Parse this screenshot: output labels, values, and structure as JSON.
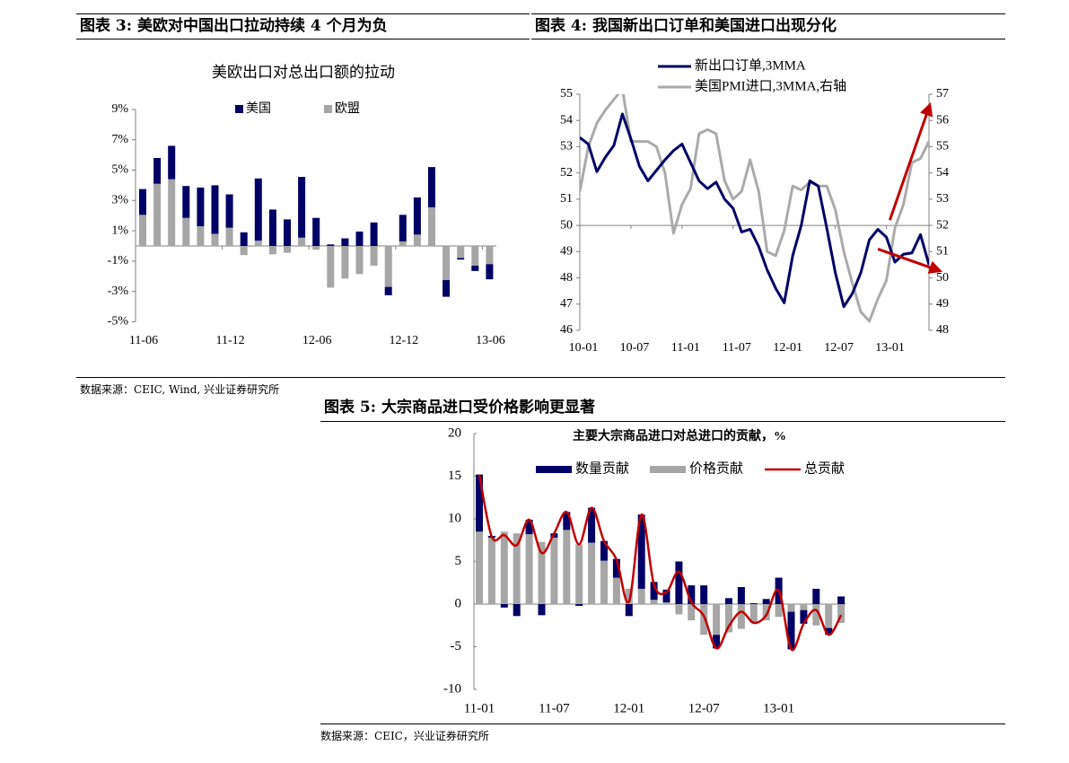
{
  "figures": {
    "fig3_title": "图表 3:  美欧对中国出口拉动持续 4 个月为负",
    "fig4_title": "图表 4:  我国新出口订单和美国进口出现分化",
    "fig5_title": "图表 5:  大宗商品进口受价格影响更显著",
    "source_top": "数据来源：CEIC, Wind, 兴业证券研究所",
    "source_bottom": "数据来源：CEIC，兴业证券研究所"
  },
  "colors": {
    "navy": "#000066",
    "gray": "#a6a6a6",
    "red": "#c00000",
    "axis": "#808080"
  },
  "chart_data": [
    {
      "type": "bar",
      "stacked": true,
      "title": "美欧出口对总出口额的拉动",
      "x": [
        "11-06",
        "11-07",
        "11-08",
        "11-09",
        "11-10",
        "11-11",
        "11-12",
        "12-01",
        "12-02",
        "12-03",
        "12-04",
        "12-05",
        "12-06",
        "12-07",
        "12-08",
        "12-09",
        "12-10",
        "12-11",
        "12-12",
        "13-01",
        "13-02",
        "13-03",
        "13-04",
        "13-05",
        "13-06"
      ],
      "x_tick_labels": [
        "11-06",
        "11-12",
        "12-06",
        "12-12",
        "13-06"
      ],
      "y_tick_labels": [
        "9%",
        "7%",
        "5%",
        "3%",
        "1%",
        "-1%",
        "-3%",
        "-5%"
      ],
      "ylim": [
        -5,
        9
      ],
      "unit": "%",
      "legend": "top",
      "series": [
        {
          "name": "美国",
          "color": "#000066",
          "values": [
            1.7,
            1.7,
            2.2,
            2.1,
            2.55,
            3.2,
            2.2,
            0.9,
            4.1,
            2.4,
            1.75,
            4.0,
            1.85,
            0.1,
            0.5,
            0.95,
            1.55,
            -0.55,
            1.75,
            2.45,
            2.65,
            -1.1,
            -0.1,
            -0.35,
            -1.0
          ]
        },
        {
          "name": "欧盟",
          "color": "#a6a6a6",
          "values": [
            2.05,
            4.1,
            4.4,
            1.85,
            1.3,
            0.8,
            1.2,
            -0.6,
            0.35,
            -0.55,
            -0.45,
            0.55,
            -0.25,
            -2.75,
            -2.15,
            -1.85,
            -1.3,
            -2.7,
            0.3,
            0.75,
            2.55,
            -2.25,
            -0.8,
            -1.3,
            -1.2
          ]
        }
      ]
    },
    {
      "type": "line",
      "x_start": "10-01",
      "x_tick_labels": [
        "10-01",
        "10-07",
        "11-01",
        "11-07",
        "12-01",
        "12-07",
        "13-01"
      ],
      "y_left_tick_labels": [
        "55",
        "54",
        "53",
        "52",
        "51",
        "50",
        "49",
        "48",
        "47",
        "46"
      ],
      "y_right_tick_labels": [
        "57",
        "56",
        "55",
        "54",
        "53",
        "52",
        "51",
        "50",
        "49",
        "48"
      ],
      "ylim_left": [
        46,
        55
      ],
      "ylim_right": [
        48,
        57
      ],
      "reference_line": 50,
      "legend": "top",
      "series": [
        {
          "name": "新出口订单,3MMA",
          "axis": "left",
          "color": "#000066",
          "values": [
            53.35,
            53.1,
            52.05,
            52.6,
            53.05,
            54.25,
            53.3,
            52.25,
            51.7,
            52.1,
            52.5,
            52.85,
            53.1,
            52.4,
            51.7,
            51.4,
            51.65,
            51.0,
            50.65,
            49.75,
            49.85,
            49.2,
            48.3,
            47.6,
            47.05,
            48.85,
            50.0,
            51.7,
            51.5,
            49.9,
            48.2,
            46.9,
            47.4,
            48.2,
            49.45,
            49.85,
            49.55,
            48.6,
            48.9,
            48.95,
            49.65,
            48.5
          ]
        },
        {
          "name": "美国PMI进口,3MMA,右轴",
          "axis": "right",
          "color": "#aaaaaa",
          "values": [
            53.3,
            55.0,
            55.9,
            56.4,
            56.8,
            57.2,
            55.2,
            55.2,
            55.2,
            55.0,
            54.0,
            51.7,
            52.8,
            53.4,
            55.5,
            55.65,
            55.5,
            53.7,
            53.0,
            53.3,
            54.5,
            53.3,
            51.0,
            50.85,
            51.8,
            53.5,
            53.35,
            53.65,
            53.5,
            53.5,
            52.6,
            51.0,
            49.8,
            48.7,
            48.35,
            49.2,
            49.9,
            51.9,
            52.8,
            54.4,
            54.55,
            55.2
          ]
        }
      ],
      "annotations": [
        {
          "type": "arrow",
          "color": "#c00000",
          "from": {
            "index": 36.4,
            "right_axis": 52.2
          },
          "to": {
            "index": 41,
            "right_axis": 56.5
          }
        },
        {
          "type": "arrow",
          "color": "#c00000",
          "from": {
            "index": 35,
            "left_axis": 49.1
          },
          "to": {
            "index": 42,
            "left_axis": 48.3
          }
        }
      ]
    },
    {
      "type": "bar+line",
      "stacked": true,
      "title": "主要大宗商品进口对总进口的贡献，%",
      "x_start": "11-01",
      "x_tick_labels": [
        "11-01",
        "11-07",
        "12-01",
        "12-07",
        "13-01"
      ],
      "y_tick_labels": [
        "20",
        "15",
        "10",
        "5",
        "0",
        "-5",
        "-10"
      ],
      "ylim": [
        -10,
        20
      ],
      "legend": "top",
      "series": [
        {
          "name": "数量贡献",
          "type": "bar",
          "color": "#000066",
          "values": [
            6.7,
            0.2,
            -0.4,
            -1.4,
            1.7,
            -1.3,
            0.5,
            2.1,
            -0.2,
            4.1,
            2.3,
            2.2,
            -1.4,
            8.7,
            2.1,
            1.5,
            5.0,
            2.2,
            2.2,
            -1.6,
            0.7,
            2.0,
            0.1,
            0.6,
            3.1,
            -4.4,
            -1.6,
            1.8,
            -0.8,
            0.9
          ]
        },
        {
          "name": "价格贡献",
          "type": "bar",
          "color": "#a6a6a6",
          "values": [
            8.5,
            7.8,
            8.5,
            8.3,
            8.2,
            7.3,
            7.8,
            8.7,
            7.0,
            7.2,
            5.1,
            3.1,
            1.8,
            1.8,
            0.5,
            0.2,
            -1.2,
            -1.9,
            -3.6,
            -3.6,
            -3.3,
            -2.9,
            -2.2,
            -1.9,
            -1.5,
            -0.9,
            -0.7,
            -2.5,
            -2.8,
            -2.2
          ]
        },
        {
          "name": "总贡献",
          "type": "line",
          "color": "#c00000",
          "values": [
            15.2,
            7.9,
            8.1,
            6.9,
            9.9,
            6.0,
            8.3,
            10.8,
            7.0,
            11.3,
            7.4,
            5.2,
            0.3,
            10.5,
            2.3,
            1.4,
            3.8,
            0.2,
            -1.4,
            -5.2,
            -2.6,
            -0.9,
            -2.2,
            -1.3,
            1.6,
            -5.3,
            -2.3,
            -0.7,
            -3.6,
            -1.3
          ]
        }
      ]
    }
  ]
}
